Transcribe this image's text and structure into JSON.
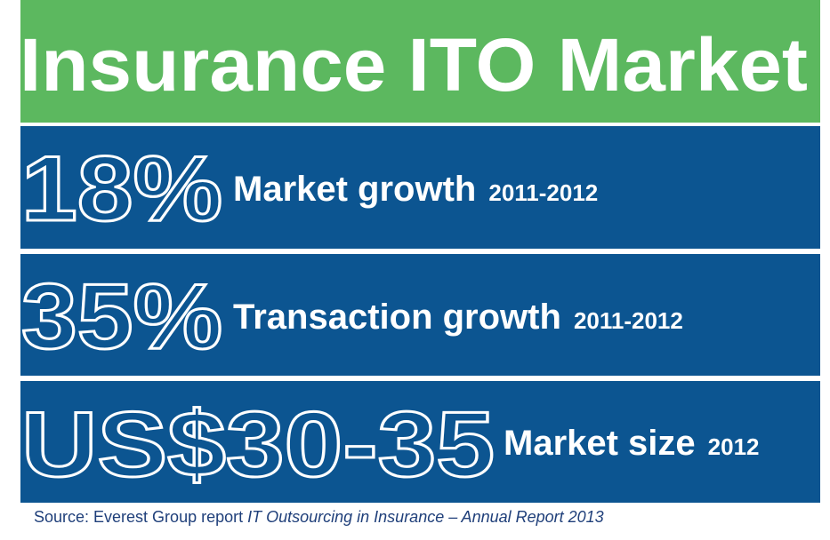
{
  "header": {
    "title": "Insurance ITO Market"
  },
  "stats": [
    {
      "figure": "18%",
      "label": "Market growth",
      "period": "2011-2012"
    },
    {
      "figure": "35%",
      "label": "Transaction growth",
      "period": "2011-2012"
    },
    {
      "figure": "US$30-35",
      "label": "Market size",
      "period": "2012"
    }
  ],
  "source": {
    "text": "Source: Everest Group report",
    "title": "IT Outsourcing in Insurance – Annual Report 2013"
  }
}
